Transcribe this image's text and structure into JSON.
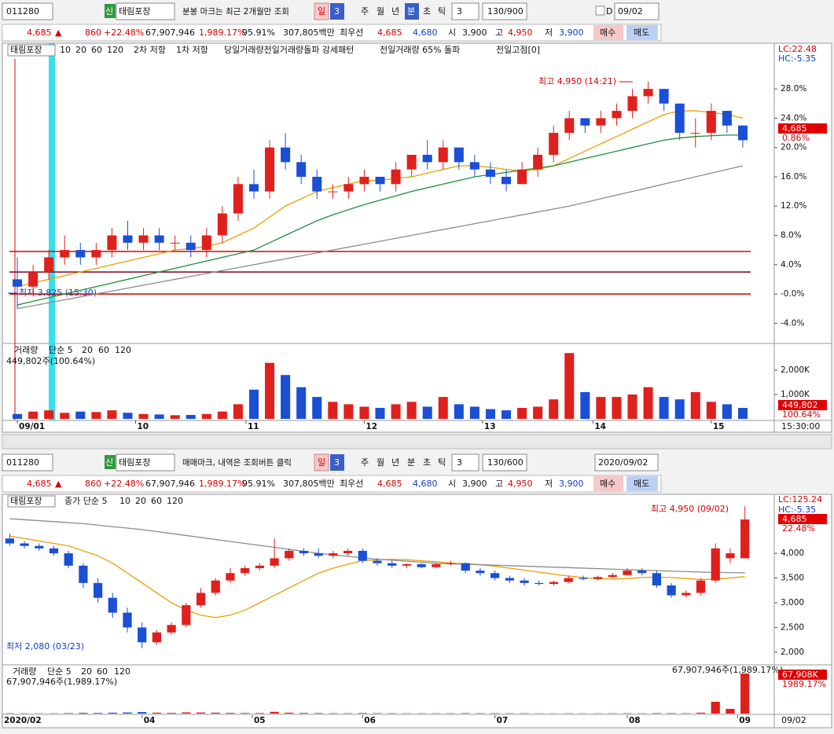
{
  "toolbar": {
    "code": "011280",
    "badge": "신",
    "name": "태림포장",
    "notice": "분봉 마크는 최근 2개월만 조회",
    "period": "일",
    "num": "3",
    "units": [
      "주",
      "월",
      "년",
      "분",
      "초",
      "틱"
    ],
    "unit_num": "3",
    "count": "130/900",
    "check": "D",
    "date": "09/02"
  },
  "toolbar2": {
    "code": "011280",
    "badge": "신",
    "name": "태림포장",
    "notice": "매매마크, 내역은 조회버튼 클릭",
    "period": "일",
    "num": "3",
    "units": [
      "주",
      "월",
      "년",
      "분",
      "초",
      "틱"
    ],
    "unit_num": "3",
    "count": "130/600",
    "date": "2020/09/02"
  },
  "quote": {
    "price": "4,685",
    "arrow": "▲",
    "change": "860",
    "rate": "+22.48%",
    "volume": "67,907,946",
    "vol_rate": "1,989.17%",
    "ratio": "95.91%",
    "amount": "307,805백만",
    "best": "최우선",
    "ask": "4,685",
    "bid": "4,680",
    "open_label": "시",
    "open": "3,900",
    "high_label": "고",
    "high": "4,950",
    "low_label": "저",
    "low": "3,900",
    "buy": "매수",
    "sell": "매도"
  },
  "top_legend": {
    "name": "태림포장",
    "ma": [
      "10",
      "20",
      "60",
      "120"
    ],
    "r2": "2차 저항",
    "r1": "1차 저항",
    "p1": "당일거래량전일거래량돌파 강세패턴",
    "p2": "전일거래량 65% 돌파",
    "p3": "전일고점[0]",
    "lc": "LC:22.48",
    "hc": "HC:-5.35",
    "tag": "4,685",
    "tag2": "0.86%",
    "max": "최고 4,950 (14:21)",
    "min": "최저 3,825 (15:30)"
  },
  "top_vol_legend": {
    "name": "거래량",
    "ma": [
      "단순 5",
      "20",
      "60",
      "120"
    ],
    "info": "449,802주(100.64%)",
    "tag": "449,802",
    "tag2": "100.64%",
    "time": "15:30:00"
  },
  "bottom_legend": {
    "name": "태림포장",
    "ma": [
      "종가 단순 5",
      "10",
      "20",
      "60",
      "120"
    ],
    "lc": "LC:125.24",
    "hc": "HC:-5.35",
    "tag": "4,685",
    "tag2": "22.48%",
    "max": "최고 4,950 (09/02)",
    "min": "최저 2,080 (03/23)"
  },
  "bottom_vol_legend": {
    "name": "거래량",
    "ma": [
      "단순 5",
      "20",
      "60",
      "120"
    ],
    "info": "67,907,946주(1,989.17%)",
    "tag": "67,908K",
    "tag2": "1989.17%",
    "date": "09/02"
  },
  "chart_data": [
    {
      "type": "candlestick",
      "up_color": "#e0201c",
      "down_color": "#1a4fd6",
      "ylim": [
        -6,
        33.7
      ],
      "yticks": [
        {
          "value": 28,
          "label": "28.0%"
        },
        {
          "value": 24,
          "label": "24.0%"
        },
        {
          "value": 20,
          "label": "20.0%"
        },
        {
          "value": 16,
          "label": "16.0%"
        },
        {
          "value": 12,
          "label": "12.0%"
        },
        {
          "value": 8,
          "label": "8.0%"
        },
        {
          "value": 4,
          "label": "4.0%"
        },
        {
          "value": 0,
          "label": "-0.0%"
        },
        {
          "value": -4,
          "label": "-4.0%"
        }
      ],
      "values": [
        [
          2,
          5,
          -2,
          1
        ],
        [
          1,
          4,
          0,
          3
        ],
        [
          3,
          6,
          2,
          5
        ],
        [
          5,
          8,
          4,
          6
        ],
        [
          6,
          7,
          4,
          5
        ],
        [
          5,
          7,
          4,
          6
        ],
        [
          6,
          9,
          5,
          8
        ],
        [
          8,
          10,
          6,
          7
        ],
        [
          7,
          9,
          6,
          8
        ],
        [
          8,
          9,
          6,
          7
        ],
        [
          7,
          8,
          6,
          7
        ],
        [
          7,
          8,
          5,
          6
        ],
        [
          6,
          9,
          5,
          8
        ],
        [
          8,
          12,
          7,
          11
        ],
        [
          11,
          16,
          10,
          15
        ],
        [
          15,
          17,
          13,
          14
        ],
        [
          14,
          21,
          13,
          20
        ],
        [
          20,
          22,
          17,
          18
        ],
        [
          18,
          19,
          15,
          16
        ],
        [
          16,
          17,
          13,
          14
        ],
        [
          14,
          15,
          13,
          14
        ],
        [
          14,
          16,
          13,
          15
        ],
        [
          15,
          17,
          14,
          16
        ],
        [
          16,
          16,
          14,
          15
        ],
        [
          15,
          18,
          14,
          17
        ],
        [
          17,
          19,
          16,
          19
        ],
        [
          19,
          21,
          17,
          18
        ],
        [
          18,
          21,
          17,
          20
        ],
        [
          20,
          20,
          17,
          18
        ],
        [
          18,
          19,
          16,
          17
        ],
        [
          17,
          18,
          15,
          16
        ],
        [
          16,
          17,
          14,
          15
        ],
        [
          15,
          18,
          15,
          17
        ],
        [
          17,
          20,
          16,
          19
        ],
        [
          19,
          23,
          18,
          22
        ],
        [
          22,
          25,
          21,
          24
        ],
        [
          24,
          24,
          22,
          23
        ],
        [
          23,
          25,
          22,
          24
        ],
        [
          24,
          26,
          23,
          25
        ],
        [
          25,
          28,
          24,
          27
        ],
        [
          27,
          29,
          26,
          28
        ],
        [
          28,
          28,
          25,
          26
        ],
        [
          26,
          26,
          21,
          22
        ],
        [
          22,
          24,
          20,
          22
        ],
        [
          22,
          26,
          21,
          25
        ],
        [
          25,
          25,
          22,
          23
        ],
        [
          23,
          23,
          20,
          21
        ]
      ],
      "series": [
        {
          "color": "#e8a000",
          "values": [
            1,
            1.5,
            2,
            2.5,
            3,
            3.5,
            4,
            4.5,
            5,
            5.5,
            6,
            6.2,
            6.5,
            7,
            8,
            9,
            10.5,
            12,
            13,
            14,
            14.5,
            15,
            15.5,
            15.5,
            15.8,
            16,
            16.5,
            17,
            17.5,
            17.5,
            17.3,
            17,
            16.8,
            17,
            17.5,
            18.5,
            19.5,
            20.5,
            21.5,
            22.5,
            23.5,
            24.5,
            25,
            25,
            24.8,
            24.5,
            24
          ]
        },
        {
          "color": "#1f8f3a",
          "values": [
            -1.5,
            -1,
            -0.5,
            0,
            0.5,
            1,
            1.5,
            2,
            2.5,
            3,
            3.5,
            4,
            4.5,
            5,
            5.5,
            6,
            7,
            8,
            9,
            10,
            10.8,
            11.5,
            12.2,
            12.8,
            13.4,
            14,
            14.5,
            15,
            15.5,
            16,
            16.3,
            16.6,
            16.9,
            17.2,
            17.5,
            18,
            18.5,
            19,
            19.5,
            20,
            20.5,
            21,
            21.3,
            21.5,
            21.6,
            21.7,
            21.7
          ]
        },
        {
          "color": "#8c8c8c",
          "values": [
            -2,
            -1.6,
            -1.2,
            -0.8,
            -0.4,
            0,
            0.4,
            0.8,
            1.2,
            1.6,
            2,
            2.4,
            2.8,
            3.2,
            3.6,
            4,
            4.4,
            4.8,
            5.2,
            5.6,
            6,
            6.4,
            6.8,
            7.2,
            7.6,
            8,
            8.4,
            8.8,
            9.2,
            9.6,
            10,
            10.4,
            10.8,
            11.2,
            11.6,
            12,
            12.5,
            13,
            13.5,
            14,
            14.5,
            15,
            15.5,
            16,
            16.5,
            17,
            17.5
          ]
        }
      ],
      "hlines": [
        {
          "value": 5.8,
          "color": "#e00000"
        },
        {
          "value": 3,
          "color": "#800020"
        },
        {
          "value": 0,
          "color": "#c00000"
        }
      ]
    },
    {
      "type": "bar",
      "ylim": [
        0,
        3000000
      ],
      "yticks": [
        {
          "value": 2000000,
          "label": "2,000K"
        },
        {
          "value": 1000000,
          "label": "1,000K"
        }
      ],
      "values": [
        200000,
        300000,
        350000,
        250000,
        300000,
        280000,
        350000,
        250000,
        200000,
        180000,
        150000,
        160000,
        200000,
        300000,
        600000,
        1200000,
        2300000,
        1800000,
        1300000,
        900000,
        700000,
        600000,
        500000,
        450000,
        600000,
        700000,
        500000,
        900000,
        600000,
        500000,
        400000,
        350000,
        450000,
        500000,
        800000,
        2700000,
        1100000,
        900000,
        900000,
        1000000,
        1300000,
        900000,
        800000,
        1100000,
        700000,
        600000,
        449802
      ],
      "xticks": [
        {
          "value": 0,
          "label": "09/01"
        },
        {
          "value": 7.5,
          "label": "10"
        },
        {
          "value": 14.5,
          "label": "11"
        },
        {
          "value": 22,
          "label": "12"
        },
        {
          "value": 29.5,
          "label": "13"
        },
        {
          "value": 36.5,
          "label": "14"
        },
        {
          "value": 44,
          "label": "15"
        }
      ]
    },
    {
      "type": "candlestick",
      "up_color": "#e0201c",
      "down_color": "#1a4fd6",
      "ylim": [
        1760,
        5130
      ],
      "yticks": [
        {
          "value": 4000,
          "label": "4,000"
        },
        {
          "value": 3500,
          "label": "3,500"
        },
        {
          "value": 3000,
          "label": "3,000"
        },
        {
          "value": 2500,
          "label": "2,500"
        },
        {
          "value": 2000,
          "label": "2,000"
        }
      ],
      "values": [
        [
          4300,
          4400,
          4150,
          4200
        ],
        [
          4200,
          4250,
          4100,
          4150
        ],
        [
          4150,
          4200,
          4050,
          4100
        ],
        [
          4100,
          4150,
          3950,
          4000
        ],
        [
          4000,
          4050,
          3700,
          3750
        ],
        [
          3750,
          3800,
          3300,
          3400
        ],
        [
          3400,
          3500,
          3000,
          3100
        ],
        [
          3100,
          3200,
          2700,
          2800
        ],
        [
          2800,
          2900,
          2400,
          2500
        ],
        [
          2500,
          2600,
          2080,
          2200
        ],
        [
          2200,
          2450,
          2150,
          2400
        ],
        [
          2400,
          2600,
          2350,
          2550
        ],
        [
          2550,
          3000,
          2500,
          2950
        ],
        [
          2950,
          3300,
          2900,
          3200
        ],
        [
          3200,
          3500,
          3150,
          3450
        ],
        [
          3450,
          3700,
          3400,
          3600
        ],
        [
          3600,
          3750,
          3550,
          3700
        ],
        [
          3700,
          3800,
          3650,
          3750
        ],
        [
          3750,
          4300,
          3700,
          3900
        ],
        [
          3900,
          4100,
          3850,
          4050
        ],
        [
          4050,
          4100,
          3950,
          4000
        ],
        [
          4000,
          4100,
          3900,
          3950
        ],
        [
          3950,
          4050,
          3900,
          4000
        ],
        [
          4000,
          4100,
          3950,
          4050
        ],
        [
          4050,
          4100,
          3800,
          3850
        ],
        [
          3850,
          3900,
          3750,
          3800
        ],
        [
          3800,
          3850,
          3700,
          3750
        ],
        [
          3750,
          3800,
          3700,
          3780
        ],
        [
          3780,
          3800,
          3700,
          3720
        ],
        [
          3720,
          3800,
          3700,
          3780
        ],
        [
          3780,
          3850,
          3750,
          3800
        ],
        [
          3800,
          3820,
          3600,
          3650
        ],
        [
          3650,
          3700,
          3550,
          3600
        ],
        [
          3600,
          3650,
          3450,
          3500
        ],
        [
          3500,
          3550,
          3400,
          3450
        ],
        [
          3450,
          3500,
          3350,
          3400
        ],
        [
          3400,
          3450,
          3350,
          3380
        ],
        [
          3380,
          3450,
          3350,
          3420
        ],
        [
          3420,
          3550,
          3400,
          3500
        ],
        [
          3500,
          3550,
          3450,
          3480
        ],
        [
          3480,
          3550,
          3450,
          3520
        ],
        [
          3520,
          3600,
          3500,
          3560
        ],
        [
          3560,
          3700,
          3550,
          3650
        ],
        [
          3650,
          3700,
          3550,
          3600
        ],
        [
          3600,
          3650,
          3300,
          3350
        ],
        [
          3350,
          3400,
          3100,
          3150
        ],
        [
          3150,
          3250,
          3100,
          3200
        ],
        [
          3200,
          3500,
          3150,
          3450
        ],
        [
          3450,
          4200,
          3400,
          4100
        ],
        [
          3900,
          4100,
          3800,
          4000
        ],
        [
          3900,
          4950,
          3900,
          4685
        ]
      ],
      "series": [
        {
          "color": "#e8a000",
          "values": [
            4350,
            4300,
            4250,
            4200,
            4150,
            4050,
            3950,
            3800,
            3600,
            3400,
            3200,
            3000,
            2850,
            2750,
            2700,
            2750,
            2850,
            3000,
            3150,
            3300,
            3450,
            3600,
            3700,
            3780,
            3850,
            3870,
            3880,
            3870,
            3850,
            3830,
            3800,
            3790,
            3770,
            3740,
            3700,
            3660,
            3620,
            3580,
            3540,
            3510,
            3490,
            3480,
            3490,
            3510,
            3520,
            3510,
            3490,
            3470,
            3480,
            3500,
            3530
          ]
        },
        {
          "color": "#8c8c8c",
          "values": [
            4700,
            4680,
            4660,
            4640,
            4620,
            4600,
            4570,
            4540,
            4510,
            4480,
            4440,
            4400,
            4360,
            4320,
            4280,
            4240,
            4200,
            4160,
            4120,
            4080,
            4040,
            4000,
            3970,
            3940,
            3910,
            3880,
            3860,
            3840,
            3820,
            3800,
            3790,
            3780,
            3770,
            3760,
            3750,
            3740,
            3730,
            3720,
            3710,
            3700,
            3690,
            3680,
            3670,
            3660,
            3650,
            3640,
            3630,
            3620,
            3615,
            3610,
            3605
          ]
        }
      ]
    },
    {
      "type": "bar",
      "ylim": [
        0,
        80000000
      ],
      "values": [
        600000,
        500000,
        400000,
        500000,
        800000,
        1200000,
        1000000,
        1500000,
        1800000,
        2500000,
        1500000,
        1200000,
        2000000,
        1800000,
        1500000,
        1200000,
        1000000,
        900000,
        3000000,
        1500000,
        1000000,
        800000,
        700000,
        600000,
        900000,
        700000,
        600000,
        500000,
        500000,
        500000,
        500000,
        700000,
        600000,
        600000,
        500000,
        500000,
        400000,
        400000,
        500000,
        400000,
        400000,
        500000,
        600000,
        500000,
        800000,
        700000,
        600000,
        1500000,
        20000000,
        8000000,
        67907946
      ],
      "xticks": [
        {
          "value": -0.5,
          "label": "2020/02"
        },
        {
          "value": 9,
          "label": "04"
        },
        {
          "value": 16.5,
          "label": "05"
        },
        {
          "value": 24,
          "label": "06"
        },
        {
          "value": 33,
          "label": "07"
        },
        {
          "value": 42,
          "label": "08"
        },
        {
          "value": 49.5,
          "label": "09"
        }
      ]
    }
  ]
}
